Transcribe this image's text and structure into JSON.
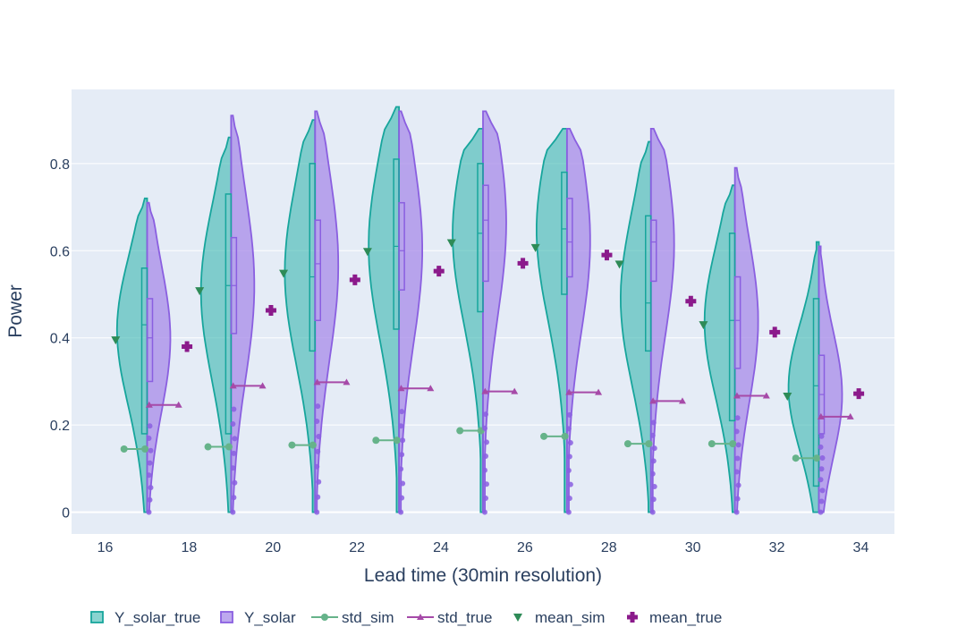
{
  "chart_data": {
    "type": "violin",
    "title": "",
    "xlabel": "Lead time (30min resolution)",
    "ylabel": "Power",
    "xlim": [
      15.2,
      34.8
    ],
    "ylim": [
      -0.05,
      0.97
    ],
    "xticks": [
      16,
      18,
      20,
      22,
      24,
      26,
      28,
      30,
      32,
      34
    ],
    "yticks": [
      0,
      0.2,
      0.4,
      0.6,
      0.8
    ],
    "ytick_labels": [
      "0",
      "0.2",
      "0.4",
      "0.6",
      "0.8"
    ],
    "grid": true,
    "legend_position": "bottom",
    "colors": {
      "plot_bg": "#e5ecf6",
      "grid": "#ffffff",
      "solar_true_fill": "#3bb8b0",
      "solar_true_line": "#17a59c",
      "solar_fill": "#a78be8",
      "solar_line": "#8a5fe0",
      "std_sim": "#66b38a",
      "std_true": "#a64aa8",
      "mean_sim": "#2e8b57",
      "mean_true": "#8b1a8b",
      "outlier": "#8a5fe0"
    },
    "legend": [
      {
        "name": "Y_solar_true",
        "symbol": "box-teal"
      },
      {
        "name": "Y_solar",
        "symbol": "box-purple"
      },
      {
        "name": "std_sim",
        "symbol": "line-circle"
      },
      {
        "name": "std_true",
        "symbol": "line-triangle"
      },
      {
        "name": "mean_sim",
        "symbol": "triangle-down"
      },
      {
        "name": "mean_true",
        "symbol": "cross"
      }
    ],
    "groups": [
      {
        "x": 17,
        "Y_solar_true": {
          "max": 0.72,
          "q3": 0.56,
          "median": 0.43,
          "q1": 0.18,
          "min": 0.0,
          "mean": 0.38
        },
        "Y_solar": {
          "max": 0.71,
          "q3": 0.49,
          "median": 0.4,
          "q1": 0.3,
          "min": 0.0,
          "mean": 0.38
        },
        "std_sim": 0.145,
        "std_true": 0.246,
        "mean_sim": 0.395,
        "mean_true": 0.38
      },
      {
        "x": 19,
        "Y_solar_true": {
          "max": 0.86,
          "q3": 0.73,
          "median": 0.52,
          "q1": 0.18,
          "min": 0.0,
          "mean": 0.46
        },
        "Y_solar": {
          "max": 0.91,
          "q3": 0.63,
          "median": 0.52,
          "q1": 0.41,
          "min": 0.0,
          "mean": 0.46
        },
        "std_sim": 0.15,
        "std_true": 0.29,
        "mean_sim": 0.508,
        "mean_true": 0.463
      },
      {
        "x": 21,
        "Y_solar_true": {
          "max": 0.9,
          "q3": 0.8,
          "median": 0.54,
          "q1": 0.37,
          "min": 0.0,
          "mean": 0.53
        },
        "Y_solar": {
          "max": 0.92,
          "q3": 0.67,
          "median": 0.57,
          "q1": 0.44,
          "min": 0.0,
          "mean": 0.53
        },
        "std_sim": 0.154,
        "std_true": 0.298,
        "mean_sim": 0.548,
        "mean_true": 0.533
      },
      {
        "x": 23,
        "Y_solar_true": {
          "max": 0.93,
          "q3": 0.81,
          "median": 0.61,
          "q1": 0.42,
          "min": 0.0,
          "mean": 0.55
        },
        "Y_solar": {
          "max": 0.92,
          "q3": 0.71,
          "median": 0.6,
          "q1": 0.51,
          "min": 0.0,
          "mean": 0.55
        },
        "std_sim": 0.165,
        "std_true": 0.284,
        "mean_sim": 0.598,
        "mean_true": 0.553
      },
      {
        "x": 25,
        "Y_solar_true": {
          "max": 0.88,
          "q3": 0.8,
          "median": 0.64,
          "q1": 0.46,
          "min": 0.0,
          "mean": 0.57
        },
        "Y_solar": {
          "max": 0.92,
          "q3": 0.75,
          "median": 0.67,
          "q1": 0.53,
          "min": 0.0,
          "mean": 0.57
        },
        "std_sim": 0.187,
        "std_true": 0.277,
        "mean_sim": 0.618,
        "mean_true": 0.571
      },
      {
        "x": 27,
        "Y_solar_true": {
          "max": 0.88,
          "q3": 0.78,
          "median": 0.65,
          "q1": 0.5,
          "min": 0.0,
          "mean": 0.59
        },
        "Y_solar": {
          "max": 0.88,
          "q3": 0.72,
          "median": 0.62,
          "q1": 0.54,
          "min": 0.0,
          "mean": 0.59
        },
        "std_sim": 0.174,
        "std_true": 0.275,
        "mean_sim": 0.607,
        "mean_true": 0.59
      },
      {
        "x": 29,
        "Y_solar_true": {
          "max": 0.85,
          "q3": 0.68,
          "median": 0.48,
          "q1": 0.37,
          "min": 0.0,
          "mean": 0.48
        },
        "Y_solar": {
          "max": 0.88,
          "q3": 0.67,
          "median": 0.62,
          "q1": 0.53,
          "min": 0.0,
          "mean": 0.48
        },
        "std_sim": 0.157,
        "std_true": 0.255,
        "mean_sim": 0.569,
        "mean_true": 0.484
      },
      {
        "x": 31,
        "Y_solar_true": {
          "max": 0.75,
          "q3": 0.64,
          "median": 0.44,
          "q1": 0.21,
          "min": 0.0,
          "mean": 0.41
        },
        "Y_solar": {
          "max": 0.79,
          "q3": 0.54,
          "median": 0.44,
          "q1": 0.33,
          "min": 0.0,
          "mean": 0.41
        },
        "std_sim": 0.157,
        "std_true": 0.267,
        "mean_sim": 0.43,
        "mean_true": 0.413
      },
      {
        "x": 33,
        "Y_solar_true": {
          "max": 0.62,
          "q3": 0.49,
          "median": 0.29,
          "q1": 0.06,
          "min": 0.0,
          "mean": 0.27
        },
        "Y_solar": {
          "max": 0.61,
          "q3": 0.36,
          "median": 0.27,
          "q1": 0.18,
          "min": 0.0,
          "mean": 0.27
        },
        "std_sim": 0.124,
        "std_true": 0.219,
        "mean_sim": 0.266,
        "mean_true": 0.272
      }
    ]
  }
}
